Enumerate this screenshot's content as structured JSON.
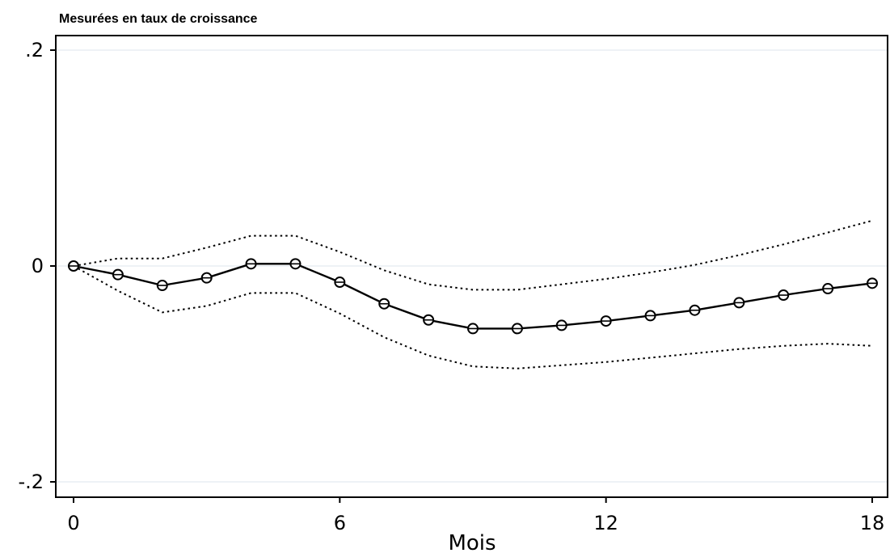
{
  "chart_data": {
    "type": "line",
    "title": "Mesurées en taux de croissance",
    "xlabel": "Mois",
    "ylabel": "",
    "xlim": [
      0,
      18
    ],
    "ylim": [
      -0.2,
      0.2
    ],
    "xticks": [
      0,
      6,
      12,
      18
    ],
    "xtick_labels": [
      "0",
      "6",
      "12",
      "18"
    ],
    "yticks": [
      0.2,
      0,
      -0.2
    ],
    "ytick_labels": [
      ".2",
      "0",
      "-.2"
    ],
    "grid": "horizontal at y ticks",
    "x": [
      0,
      1,
      2,
      3,
      4,
      5,
      6,
      7,
      8,
      9,
      10,
      11,
      12,
      13,
      14,
      15,
      16,
      17,
      18
    ],
    "series": [
      {
        "style": "solid with hollow circle markers",
        "color": "#000000",
        "values": [
          0.0,
          -0.008,
          -0.018,
          -0.011,
          0.002,
          0.002,
          -0.015,
          -0.035,
          -0.05,
          -0.058,
          -0.058,
          -0.055,
          -0.051,
          -0.046,
          -0.041,
          -0.034,
          -0.027,
          -0.021,
          -0.016
        ]
      },
      {
        "style": "dotted upper band",
        "color": "#000000",
        "values": [
          0.0,
          0.007,
          0.007,
          0.017,
          0.028,
          0.028,
          0.013,
          -0.004,
          -0.017,
          -0.022,
          -0.022,
          -0.017,
          -0.012,
          -0.006,
          0.001,
          0.01,
          0.02,
          0.031,
          0.042
        ]
      },
      {
        "style": "dotted lower band",
        "color": "#000000",
        "values": [
          0.0,
          -0.023,
          -0.043,
          -0.037,
          -0.025,
          -0.025,
          -0.044,
          -0.066,
          -0.083,
          -0.093,
          -0.095,
          -0.092,
          -0.089,
          -0.085,
          -0.081,
          -0.077,
          -0.074,
          -0.072,
          -0.074
        ]
      }
    ]
  }
}
